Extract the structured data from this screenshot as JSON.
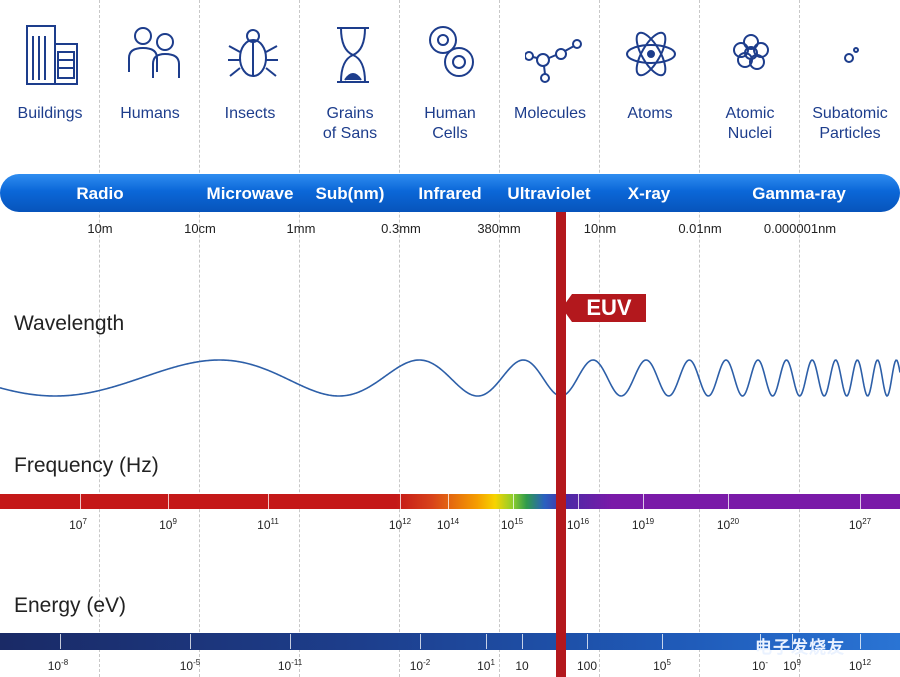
{
  "categories": [
    {
      "icon": "buildings-icon",
      "label": "Buildings"
    },
    {
      "icon": "humans-icon",
      "label": "Humans"
    },
    {
      "icon": "insect-icon",
      "label": "Insects"
    },
    {
      "icon": "hourglass-icon",
      "label": "Grains\nof Sans"
    },
    {
      "icon": "cells-icon",
      "label": "Human\nCells"
    },
    {
      "icon": "molecule-icon",
      "label": "Molecules"
    },
    {
      "icon": "atom-icon",
      "label": "Atoms"
    },
    {
      "icon": "nucleus-icon",
      "label": "Atomic\nNuclei"
    },
    {
      "icon": "particles-icon",
      "label": "Subatomic\nParticles"
    }
  ],
  "bands": [
    "Radio",
    "Microwave",
    "Sub(nm)",
    "Infrared",
    "Ultraviolet",
    "X-ray",
    "Gamma-ray"
  ],
  "wavelengths": [
    "10m",
    "10cm",
    "1mm",
    "0.3mm",
    "380mm",
    "10nm",
    "0.01nm",
    "0.000001nm"
  ],
  "headings": {
    "wavelength": "Wavelength",
    "frequency": "Frequency (Hz)",
    "energy": "Energy (eV)"
  },
  "euv_label": "EUV",
  "frequency": {
    "base": "10",
    "exponents": [
      "7",
      "9",
      "11",
      "12",
      "14",
      "15",
      "16",
      "19",
      "20",
      "27"
    ]
  },
  "energy": {
    "labels": [
      {
        "base": "10",
        "exp": "-8"
      },
      {
        "base": "10",
        "exp": "-5"
      },
      {
        "base": "10",
        "exp": "-11"
      },
      {
        "base": "10",
        "exp": "-2"
      },
      {
        "base": "10",
        "exp": "1"
      },
      {
        "base": "10",
        "exp": ""
      },
      {
        "base": "100",
        "exp": ""
      },
      {
        "base": "10",
        "exp": "5"
      },
      {
        "base": "10",
        "exp": "-"
      },
      {
        "base": "10",
        "exp": "9"
      },
      {
        "base": "10",
        "exp": "12"
      }
    ]
  },
  "watermark": "电子发烧友",
  "colors": {
    "band": "#0b67d8",
    "euv": "#b3181d",
    "text": "#1d3d8c"
  }
}
